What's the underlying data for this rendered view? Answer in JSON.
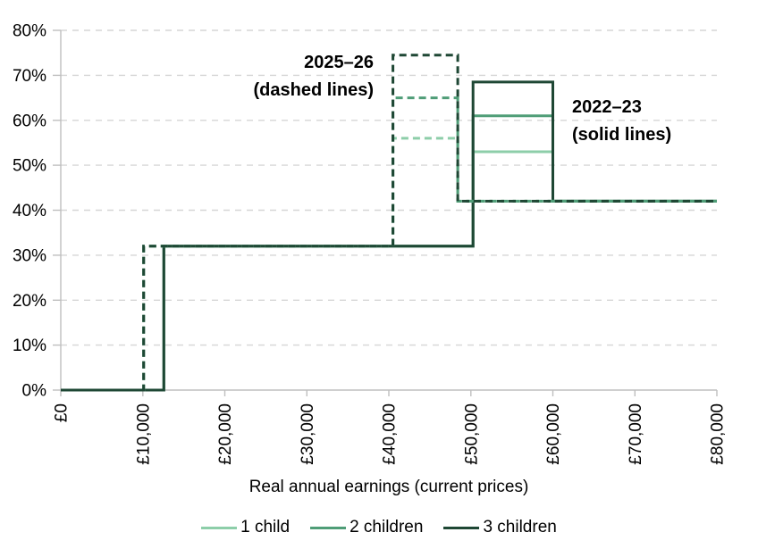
{
  "chart_data": {
    "type": "line",
    "subtype": "step",
    "title": "",
    "xlabel": "Real annual earnings (current prices)",
    "ylabel": "",
    "xlim": [
      0,
      80000
    ],
    "ylim": [
      0,
      80
    ],
    "grid": "horizontal-dashed",
    "x_ticks": [
      {
        "value": 0,
        "label": "£0"
      },
      {
        "value": 10000,
        "label": "£10,000"
      },
      {
        "value": 20000,
        "label": "£20,000"
      },
      {
        "value": 30000,
        "label": "£30,000"
      },
      {
        "value": 40000,
        "label": "£40,000"
      },
      {
        "value": 50000,
        "label": "£50,000"
      },
      {
        "value": 60000,
        "label": "£60,000"
      },
      {
        "value": 70000,
        "label": "£70,000"
      },
      {
        "value": 80000,
        "label": "£80,000"
      }
    ],
    "y_ticks": [
      {
        "value": 0,
        "label": "0%"
      },
      {
        "value": 10,
        "label": "10%"
      },
      {
        "value": 20,
        "label": "20%"
      },
      {
        "value": 30,
        "label": "30%"
      },
      {
        "value": 40,
        "label": "40%"
      },
      {
        "value": 50,
        "label": "50%"
      },
      {
        "value": 60,
        "label": "60%"
      },
      {
        "value": 70,
        "label": "70%"
      },
      {
        "value": 80,
        "label": "80%"
      }
    ],
    "colors": {
      "one_child": "#8DCEA9",
      "two_children": "#4F9D77",
      "three_children": "#1E4734",
      "gridline": "#D6D6D6",
      "axis": "#BFBFBF"
    },
    "series": [
      {
        "name": "1 child (2022–23, solid)",
        "style": "solid",
        "color": "#8DCEA9",
        "points": [
          [
            0,
            0
          ],
          [
            12570,
            0
          ],
          [
            12570,
            32
          ],
          [
            50270,
            32
          ],
          [
            50270,
            53
          ],
          [
            60000,
            53
          ],
          [
            60000,
            42
          ],
          [
            80000,
            42
          ]
        ]
      },
      {
        "name": "2 children (2022–23, solid)",
        "style": "solid",
        "color": "#4F9D77",
        "points": [
          [
            0,
            0
          ],
          [
            12570,
            0
          ],
          [
            12570,
            32
          ],
          [
            50270,
            32
          ],
          [
            50270,
            61
          ],
          [
            60000,
            61
          ],
          [
            60000,
            42
          ],
          [
            80000,
            42
          ]
        ]
      },
      {
        "name": "3 children (2022–23, solid)",
        "style": "solid",
        "color": "#1E4734",
        "points": [
          [
            0,
            0
          ],
          [
            12570,
            0
          ],
          [
            12570,
            32
          ],
          [
            50270,
            32
          ],
          [
            50270,
            68.5
          ],
          [
            60000,
            68.5
          ],
          [
            60000,
            42
          ],
          [
            80000,
            42
          ]
        ]
      },
      {
        "name": "1 child (2025–26, dashed)",
        "style": "dashed",
        "color": "#8DCEA9",
        "points": [
          [
            0,
            0
          ],
          [
            10100,
            0
          ],
          [
            10100,
            32
          ],
          [
            40500,
            32
          ],
          [
            40500,
            56
          ],
          [
            48400,
            56
          ],
          [
            48400,
            42
          ],
          [
            80000,
            42
          ]
        ]
      },
      {
        "name": "2 children (2025–26, dashed)",
        "style": "dashed",
        "color": "#4F9D77",
        "points": [
          [
            0,
            0
          ],
          [
            10100,
            0
          ],
          [
            10100,
            32
          ],
          [
            40500,
            32
          ],
          [
            40500,
            65
          ],
          [
            48400,
            65
          ],
          [
            48400,
            42
          ],
          [
            80000,
            42
          ]
        ]
      },
      {
        "name": "3 children (2025–26, dashed)",
        "style": "dashed",
        "color": "#1E4734",
        "points": [
          [
            0,
            0
          ],
          [
            10100,
            0
          ],
          [
            10100,
            32
          ],
          [
            40500,
            32
          ],
          [
            40500,
            74.5
          ],
          [
            48400,
            74.5
          ],
          [
            48400,
            42
          ],
          [
            80000,
            42
          ]
        ]
      }
    ],
    "annotations": [
      {
        "lines": [
          "2025–26",
          "(dashed lines)"
        ],
        "refers_to": "dashed series"
      },
      {
        "lines": [
          "2022–23",
          "(solid lines)"
        ],
        "refers_to": "solid series"
      }
    ],
    "legend": {
      "position": "bottom-center",
      "entries": [
        {
          "label": "1 child",
          "color": "#8DCEA9"
        },
        {
          "label": "2 children",
          "color": "#4F9D77"
        },
        {
          "label": "3 children",
          "color": "#1E4734"
        }
      ]
    }
  }
}
